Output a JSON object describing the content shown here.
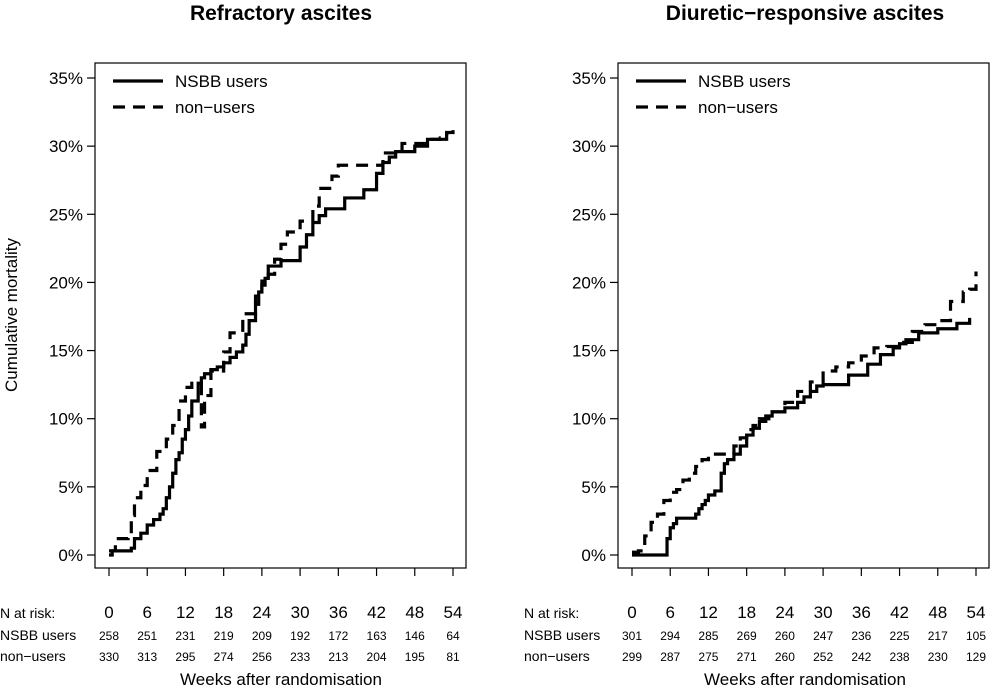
{
  "ylabel": "Cumulative mortality",
  "xlabel": "Weeks after randomisation",
  "risk_header": "N at risk:",
  "chart_data": [
    {
      "type": "line",
      "step": true,
      "title": "Refractory ascites",
      "ylabel": "Cumulative mortality",
      "xlabel": "Weeks after randomisation",
      "xlim": [
        0,
        54
      ],
      "ylim": [
        0,
        35
      ],
      "xticks": [
        "0",
        "6",
        "12",
        "18",
        "24",
        "30",
        "36",
        "42",
        "48",
        "54"
      ],
      "yticks": [
        "0%",
        "5%",
        "10%",
        "15%",
        "20%",
        "25%",
        "30%",
        "35%"
      ],
      "legend": {
        "position": "top-left",
        "entries": [
          "NSBB users",
          "non−users"
        ]
      },
      "series": [
        {
          "name": "NSBB users",
          "style": "solid",
          "x": [
            0,
            0.5,
            3.5,
            4,
            5,
            6,
            7,
            8,
            8.5,
            9,
            9.5,
            10,
            10.5,
            11,
            11.5,
            12,
            12.5,
            13,
            14,
            14.5,
            15,
            16,
            17,
            18,
            19,
            20,
            21,
            21.5,
            22,
            23,
            23.5,
            24,
            24.5,
            25,
            26,
            27,
            28,
            30,
            31,
            32,
            33,
            34,
            35,
            36,
            37,
            40,
            41,
            42,
            43,
            44,
            45,
            46,
            48,
            50,
            53
          ],
          "y": [
            0,
            0.3,
            0.5,
            1.2,
            1.6,
            2.2,
            2.6,
            3.0,
            3.4,
            4.2,
            5.0,
            6.0,
            7.0,
            7.5,
            8.5,
            9.2,
            10.2,
            11.3,
            12.6,
            13.0,
            13.3,
            13.6,
            13.8,
            14.1,
            14.5,
            14.9,
            15.4,
            16.2,
            17.2,
            18.4,
            19.3,
            19.8,
            20.3,
            21.2,
            21.2,
            21.6,
            21.6,
            22.6,
            23.5,
            24.4,
            24.9,
            25.4,
            25.4,
            25.4,
            26.2,
            26.8,
            26.8,
            28.0,
            28.8,
            29.2,
            29.6,
            29.6,
            30.0,
            30.5,
            30.9
          ]
        },
        {
          "name": "non−users",
          "style": "dashed",
          "x": [
            0,
            1,
            3,
            3.5,
            4,
            5,
            6,
            7,
            7.5,
            8,
            9,
            10,
            11,
            12,
            13,
            14,
            14.5,
            15,
            16,
            18,
            19,
            20,
            21,
            22,
            23,
            24,
            25,
            26,
            27,
            28,
            29,
            30,
            31,
            32,
            33,
            34,
            35,
            36,
            37,
            38,
            40,
            43,
            44,
            46,
            48,
            50,
            52,
            53,
            54
          ],
          "y": [
            0.3,
            1.2,
            1.5,
            2.9,
            4.2,
            5.1,
            6.2,
            6.2,
            7.6,
            7.6,
            8.5,
            9.5,
            11.3,
            12.3,
            12.6,
            12.6,
            9.4,
            11.7,
            13.5,
            14.9,
            16.3,
            16.3,
            17.7,
            17.7,
            19.0,
            20.1,
            20.6,
            21.7,
            22.8,
            23.7,
            23.7,
            24.5,
            24.5,
            25.6,
            26.9,
            26.9,
            27.8,
            28.6,
            28.6,
            28.6,
            28.6,
            29.5,
            29.5,
            30.2,
            30.2,
            30.5,
            30.6,
            31.0,
            31.2
          ]
        }
      ],
      "n_at_risk": {
        "weeks": [
          "0",
          "6",
          "12",
          "18",
          "24",
          "30",
          "36",
          "42",
          "48",
          "54"
        ],
        "rows": [
          {
            "label": "NSBB users",
            "values": [
              "258",
              "251",
              "231",
              "219",
              "209",
              "192",
              "172",
              "163",
              "146",
              "64"
            ]
          },
          {
            "label": "non−users",
            "values": [
              "330",
              "313",
              "295",
              "274",
              "256",
              "233",
              "213",
              "204",
              "195",
              "81"
            ]
          }
        ]
      }
    },
    {
      "type": "line",
      "step": true,
      "title": "Diuretic−responsive ascites",
      "xlabel": "Weeks after randomisation",
      "xlim": [
        0,
        54
      ],
      "ylim": [
        0,
        35
      ],
      "xticks": [
        "0",
        "6",
        "12",
        "18",
        "24",
        "30",
        "36",
        "42",
        "48",
        "54"
      ],
      "yticks": [
        "0%",
        "5%",
        "10%",
        "15%",
        "20%",
        "25%",
        "30%",
        "35%"
      ],
      "legend": {
        "position": "top-left",
        "entries": [
          "NSBB users",
          "non−users"
        ]
      },
      "series": [
        {
          "name": "NSBB users",
          "style": "solid",
          "x": [
            0,
            5,
            5.5,
            6,
            6.5,
            7,
            8,
            10,
            10.5,
            11,
            11.5,
            12,
            13,
            14,
            14.5,
            15,
            16,
            17,
            18,
            19,
            20,
            21,
            22,
            24,
            26,
            27,
            28,
            29,
            30,
            31,
            34,
            37,
            39,
            41,
            42,
            43,
            45,
            48,
            51,
            53
          ],
          "y": [
            0,
            0,
            1.2,
            2.0,
            2.3,
            2.7,
            2.7,
            3.0,
            3.4,
            3.7,
            4.0,
            4.4,
            4.7,
            6.0,
            6.7,
            7.0,
            7.4,
            8.0,
            8.8,
            9.3,
            9.8,
            10.2,
            10.5,
            10.8,
            11.2,
            11.6,
            12.0,
            12.4,
            12.5,
            12.5,
            13.2,
            14.0,
            14.7,
            15.2,
            15.5,
            15.8,
            16.3,
            16.6,
            17.0,
            17.4
          ]
        },
        {
          "name": "non−users",
          "style": "dashed",
          "x": [
            0,
            1,
            2,
            3,
            4,
            5,
            6,
            7,
            8,
            9,
            10,
            11,
            12,
            13,
            15,
            16,
            17,
            18,
            19,
            20,
            22,
            24,
            26,
            28,
            30,
            32,
            34,
            36,
            38,
            40,
            42,
            44,
            46,
            48,
            50,
            52,
            53,
            54
          ],
          "y": [
            0.2,
            0.3,
            1.4,
            2.4,
            3.0,
            4.0,
            4.6,
            4.8,
            5.5,
            6.0,
            6.5,
            7.0,
            7.4,
            7.4,
            7.4,
            8.0,
            8.6,
            9.2,
            9.5,
            10.0,
            10.5,
            11.2,
            12.0,
            12.7,
            13.5,
            13.8,
            14.1,
            14.6,
            15.2,
            15.3,
            15.6,
            16.4,
            16.9,
            17.2,
            18.6,
            19.3,
            19.5,
            20.8
          ]
        }
      ],
      "n_at_risk": {
        "weeks": [
          "0",
          "6",
          "12",
          "18",
          "24",
          "30",
          "36",
          "42",
          "48",
          "54"
        ],
        "rows": [
          {
            "label": "NSBB users",
            "values": [
              "301",
              "294",
              "285",
              "269",
              "260",
              "247",
              "236",
              "225",
              "217",
              "105"
            ]
          },
          {
            "label": "non−users",
            "values": [
              "299",
              "287",
              "275",
              "271",
              "260",
              "252",
              "242",
              "238",
              "230",
              "129"
            ]
          }
        ]
      }
    }
  ]
}
